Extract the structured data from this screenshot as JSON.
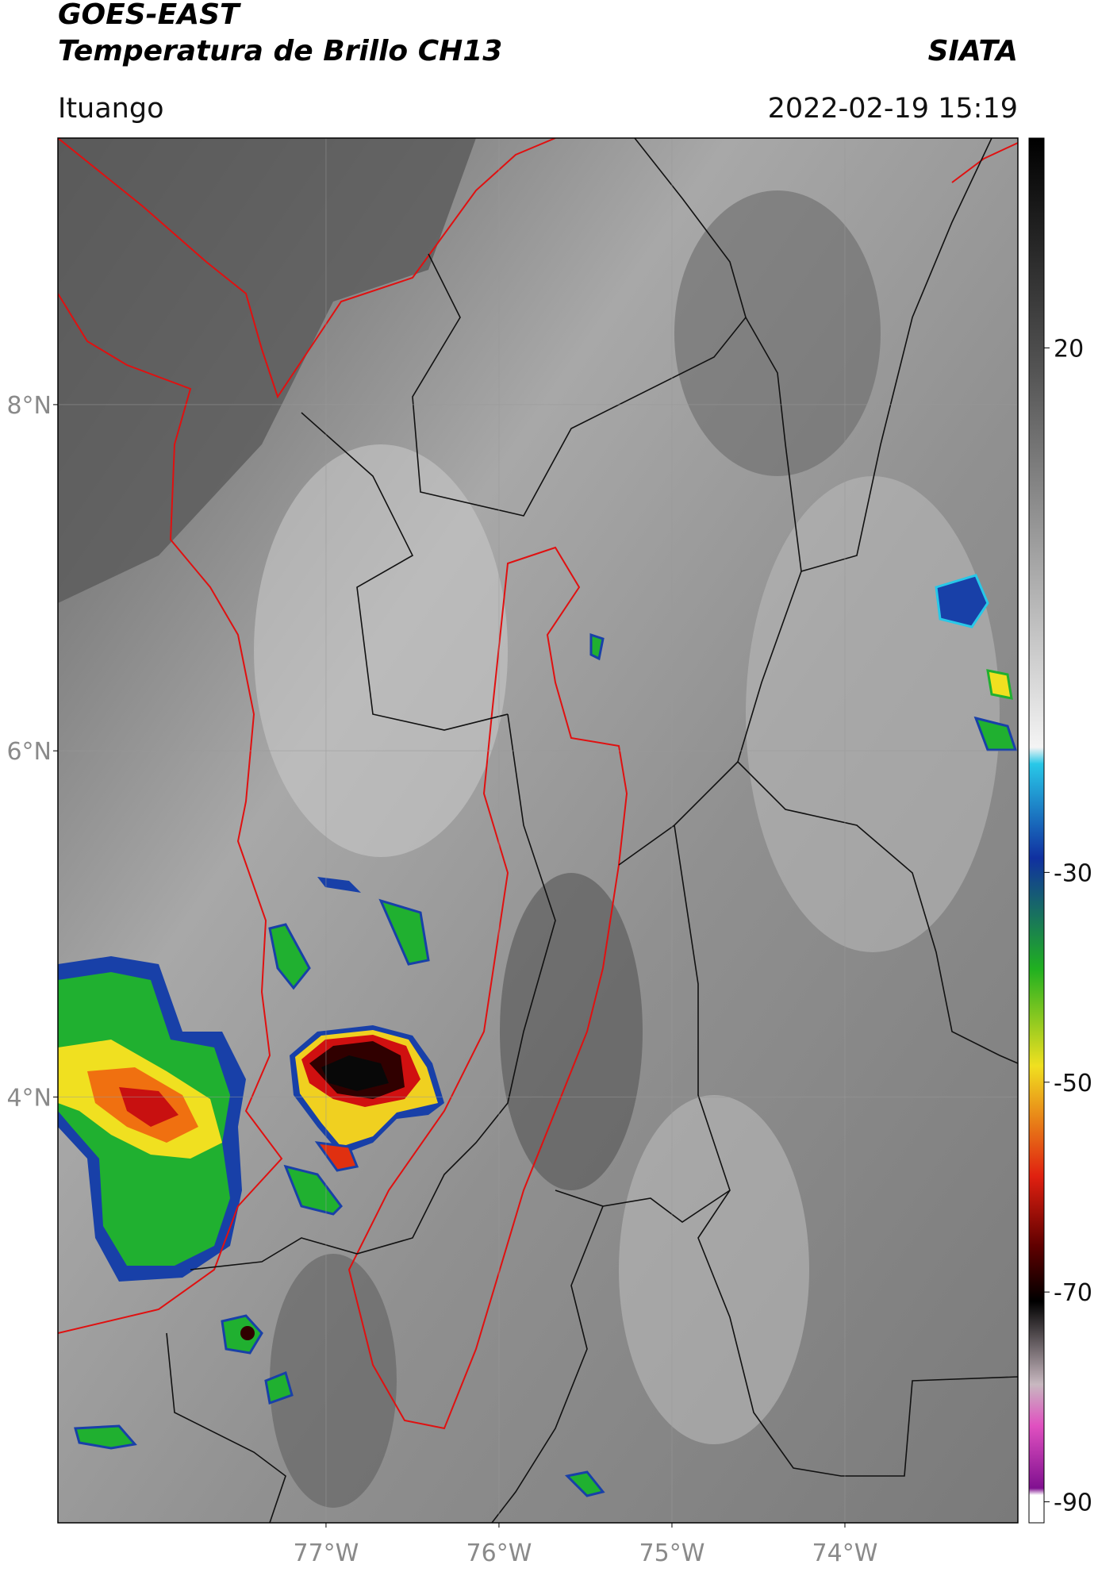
{
  "header": {
    "title": "GOES-EAST",
    "subtitle": "Temperatura de Brillo CH13",
    "source": "SIATA",
    "location": "Ituango",
    "datetime": "2022-02-19 15:19"
  },
  "map": {
    "xlim": [
      -78.55,
      -73.0
    ],
    "ylim": [
      1.54,
      9.54
    ],
    "xticks": [
      {
        "value": -77,
        "label": "77°W"
      },
      {
        "value": -76,
        "label": "76°W"
      },
      {
        "value": -75,
        "label": "75°W"
      },
      {
        "value": -74,
        "label": "74°W"
      }
    ],
    "yticks": [
      {
        "value": 8,
        "label": "8°N"
      },
      {
        "value": 6,
        "label": "6°N"
      },
      {
        "value": 4,
        "label": "4°N"
      }
    ],
    "grid": true
  },
  "colorbar": {
    "lim": [
      -92,
      40
    ],
    "ticks": [
      20,
      -30,
      -50,
      -70,
      -90
    ]
  }
}
